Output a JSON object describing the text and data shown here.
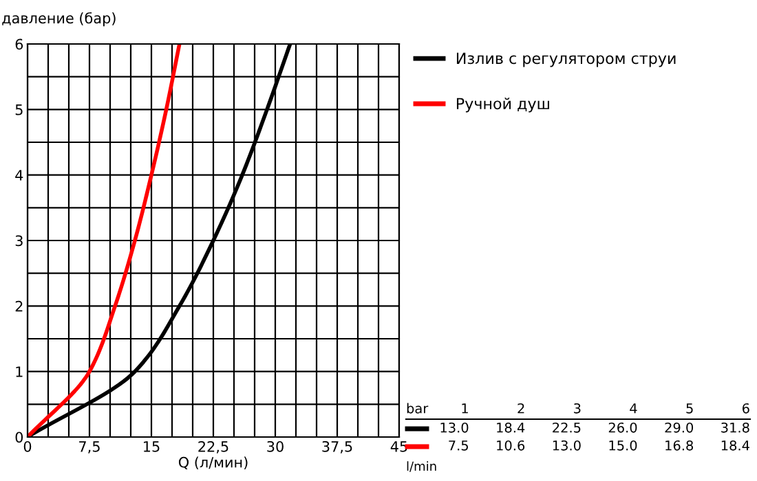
{
  "chart_data": {
    "type": "line",
    "xlabel": "Q (л/мин)",
    "ylabel": "давление (бар)",
    "xlim": [
      0,
      45
    ],
    "ylim": [
      0,
      6
    ],
    "xticks": [
      0,
      {
        "value": 2.5,
        "label": null
      },
      {
        "value": 5,
        "label": null
      },
      {
        "value": 7.5,
        "label": "7,5"
      },
      {
        "value": 10,
        "label": null
      },
      {
        "value": 12.5,
        "label": null
      },
      15,
      {
        "value": 17.5,
        "label": null
      },
      {
        "value": 20,
        "label": null
      },
      {
        "value": 22.5,
        "label": "22,5"
      },
      {
        "value": 25,
        "label": null
      },
      {
        "value": 27.5,
        "label": null
      },
      30,
      {
        "value": 32.5,
        "label": null
      },
      {
        "value": 35,
        "label": null
      },
      {
        "value": 37.5,
        "label": "37,5"
      },
      {
        "value": 40,
        "label": null
      },
      {
        "value": 42.5,
        "label": null
      },
      45
    ],
    "yticks": [
      0,
      {
        "value": 0.5,
        "label": null
      },
      1,
      {
        "value": 1.5,
        "label": null
      },
      2,
      {
        "value": 2.5,
        "label": null
      },
      3,
      {
        "value": 3.5,
        "label": null
      },
      4,
      {
        "value": 4.5,
        "label": null
      },
      5,
      {
        "value": 5.5,
        "label": null
      },
      6
    ],
    "grid": true,
    "legend": "right",
    "marker": "none",
    "line_style": "solid",
    "series": [
      {
        "name": "Излив с регулятором струи",
        "color": "#000000",
        "x": [
          0,
          13.0,
          18.4,
          22.5,
          26.0,
          29.0,
          31.8
        ],
        "values": [
          0,
          1,
          2,
          3,
          4,
          5,
          6
        ]
      },
      {
        "name": "Ручной душ",
        "color": "#ff0000",
        "x": [
          0,
          7.5,
          10.6,
          13.0,
          15.0,
          16.8,
          18.4
        ],
        "values": [
          0,
          1,
          2,
          3,
          4,
          5,
          6
        ]
      }
    ],
    "annotations": [
      "bar",
      "1",
      "2",
      "3",
      "4",
      "5",
      "6",
      "13.0",
      "18.4",
      "22.5",
      "26.0",
      "29.0",
      "31.8",
      "7.5",
      "10.6",
      "13.0",
      "15.0",
      "16.8",
      "18.4",
      "l/min"
    ]
  }
}
